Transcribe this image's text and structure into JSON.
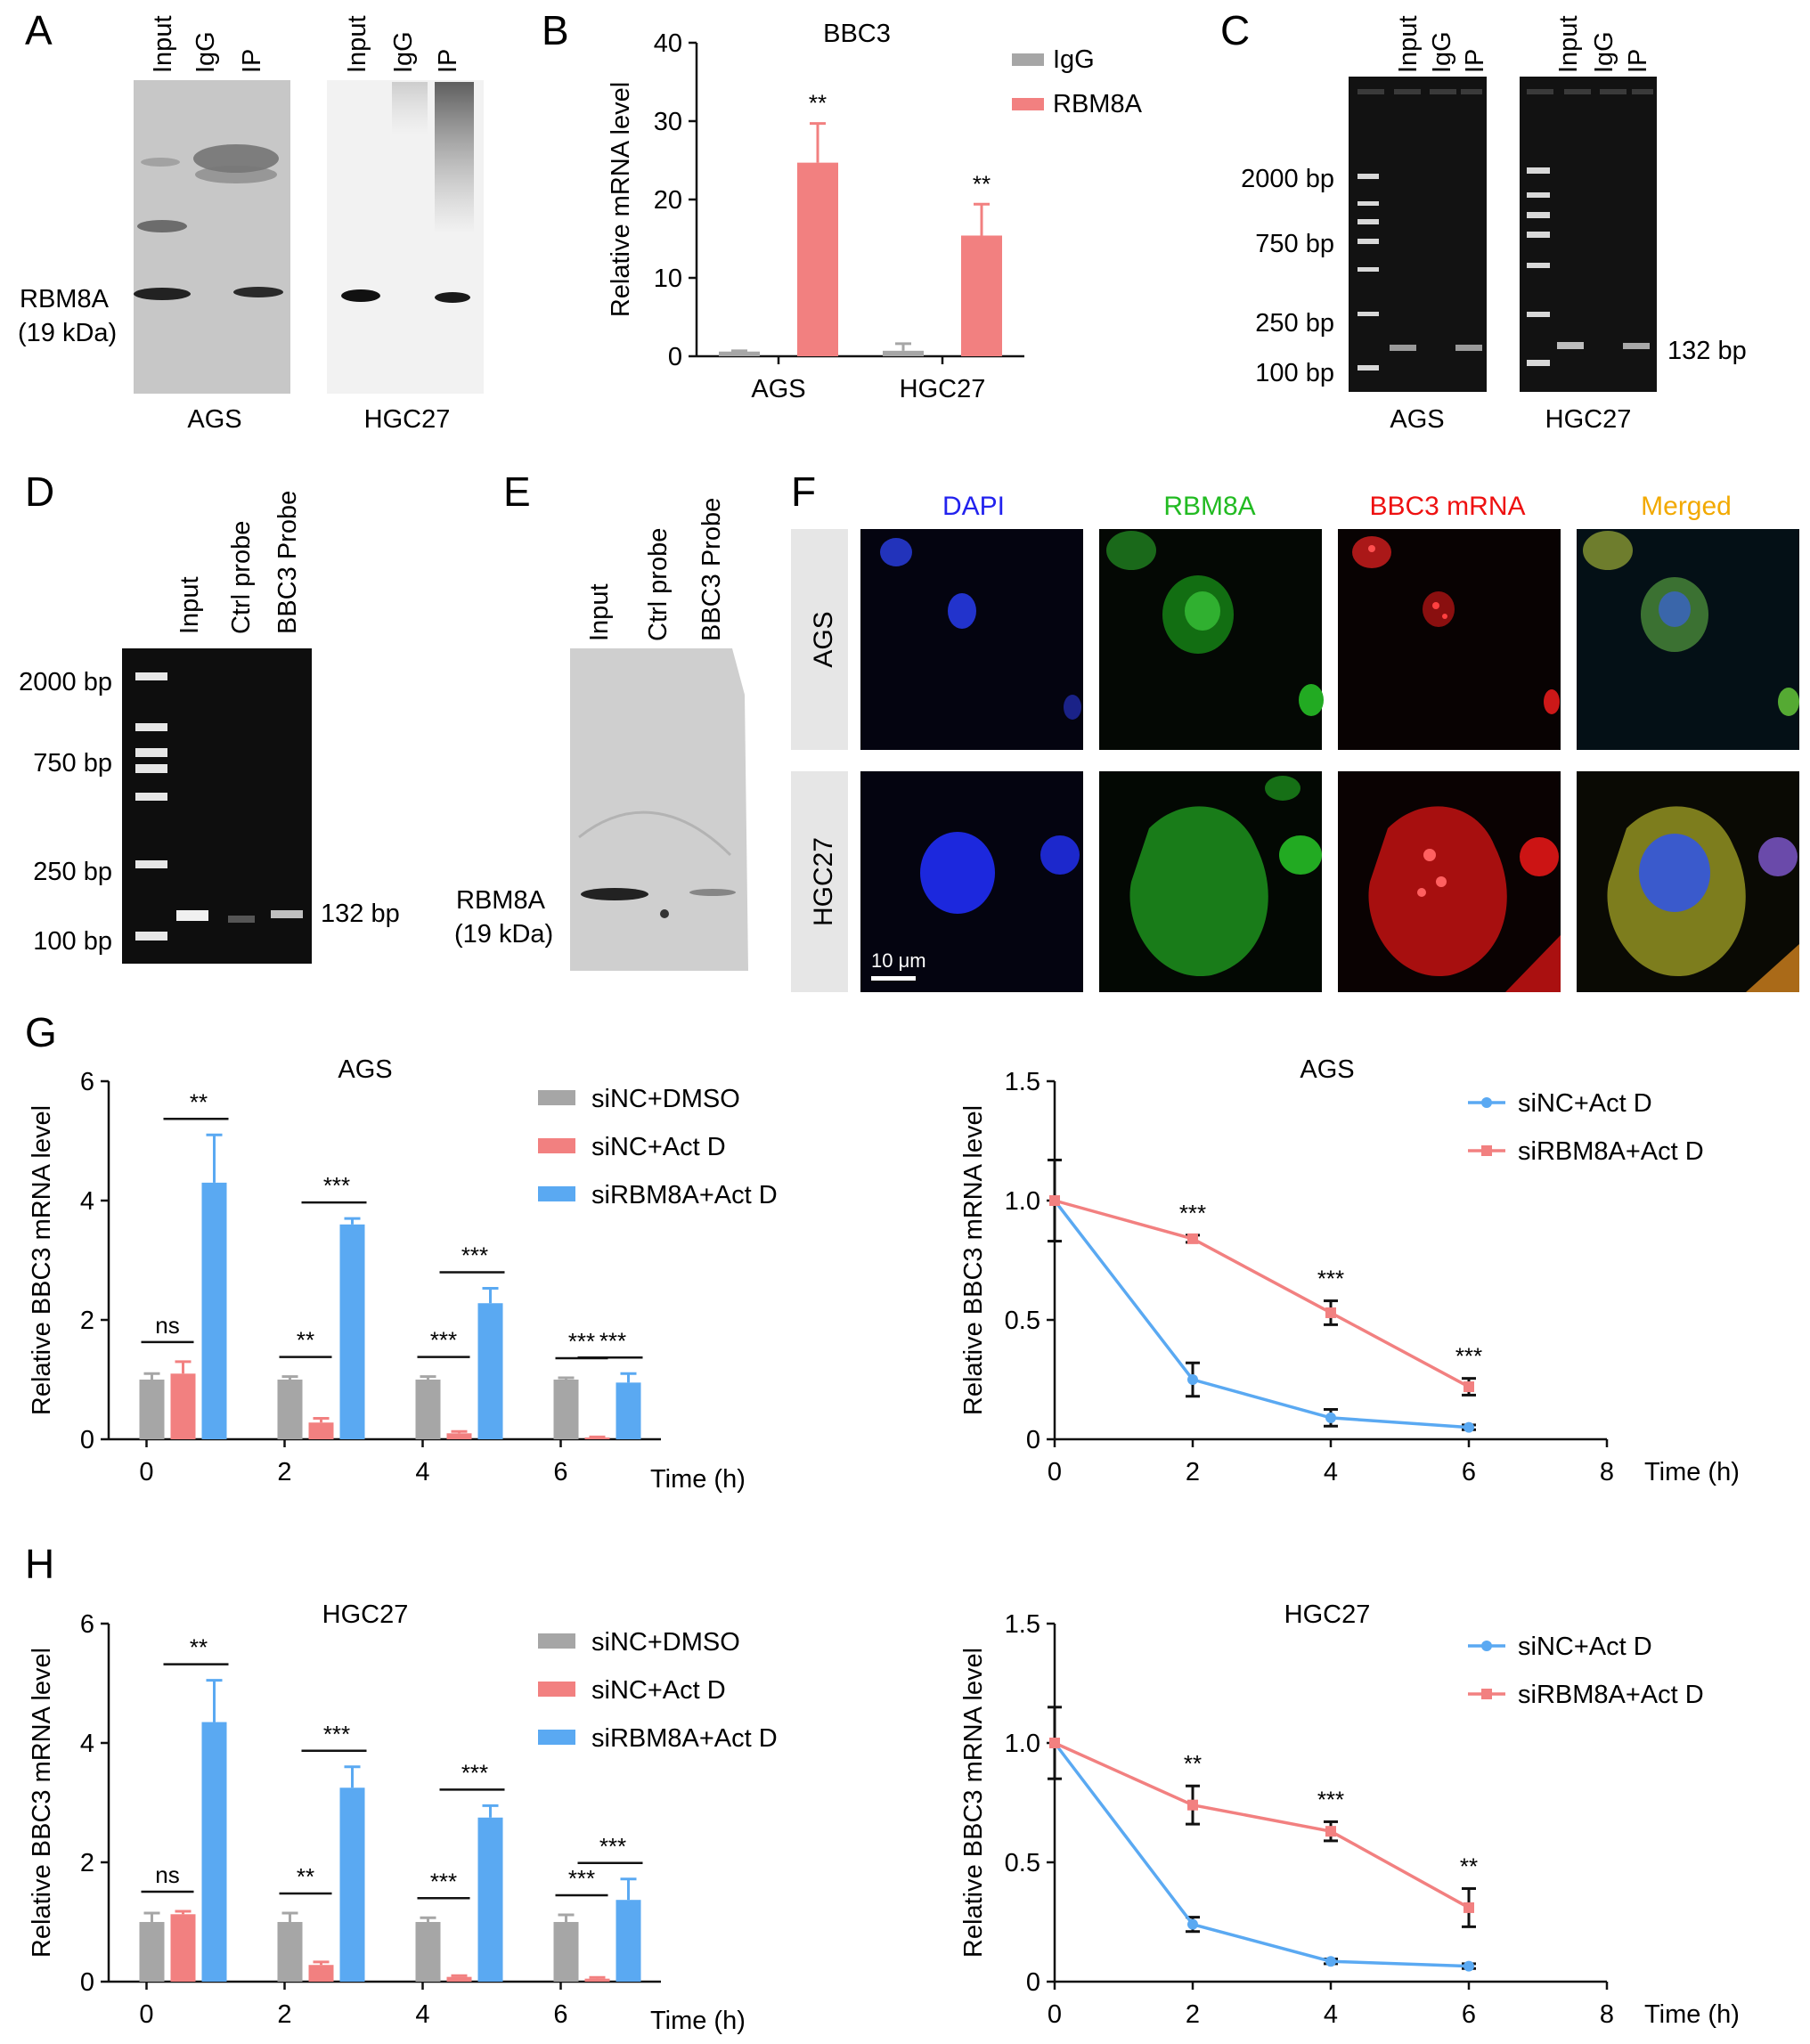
{
  "panels": {
    "A": "A",
    "B": "B",
    "C": "C",
    "D": "D",
    "E": "E",
    "F": "F",
    "G": "G",
    "H": "H"
  },
  "colors": {
    "igg": "#a6a6a6",
    "rbm8a": "#f28080",
    "dmso": "#a6a6a6",
    "actd": "#f28080",
    "si": "#5aa9f2",
    "dapi": "#1a1aff",
    "green": "#22bb22",
    "red": "#ee1111",
    "merged": "#f2a900"
  },
  "panel_a": {
    "lanes": [
      "Input",
      "IgG",
      "IP"
    ],
    "band_label": "RBM8A",
    "band_kda": "(19 kDa)",
    "cells": [
      "AGS",
      "HGC27"
    ]
  },
  "panel_c": {
    "lanes": [
      "Input",
      "IgG",
      "IP"
    ],
    "markers": [
      "2000 bp",
      "750 bp",
      "250 bp",
      "100 bp"
    ],
    "product": "132 bp",
    "cells": [
      "AGS",
      "HGC27"
    ]
  },
  "panel_d": {
    "lanes": [
      "Input",
      "Ctrl probe",
      "BBC3 Probe"
    ],
    "markers": [
      "2000 bp",
      "750 bp",
      "250 bp",
      "100 bp"
    ],
    "product": "132 bp"
  },
  "panel_e": {
    "lanes": [
      "Input",
      "Ctrl probe",
      "BBC3 Probe"
    ],
    "band_label": "RBM8A",
    "band_kda": "(19 kDa)"
  },
  "panel_f": {
    "columns": [
      "DAPI",
      "RBM8A",
      "BBC3 mRNA",
      "Merged"
    ],
    "rows": [
      "AGS",
      "HGC27"
    ],
    "scale_bar": "10 μm"
  },
  "chart_data": [
    {
      "id": "B",
      "type": "bar",
      "title": "BBC3",
      "ylabel": "Relative mRNA level",
      "xlabel": "",
      "categories": [
        "AGS",
        "HGC27"
      ],
      "ylim": [
        0,
        40
      ],
      "yticks": [
        0,
        10,
        20,
        30,
        40
      ],
      "series": [
        {
          "name": "IgG",
          "values": [
            0.6,
            0.7
          ],
          "errors": [
            0.1,
            0.9
          ]
        },
        {
          "name": "RBM8A",
          "values": [
            24.7,
            15.4
          ],
          "errors": [
            5.0,
            4.0
          ]
        }
      ],
      "significance": [
        "**",
        "**"
      ],
      "legend": "top-right"
    },
    {
      "id": "G-bar",
      "type": "bar",
      "title": "AGS",
      "ylabel": "Relative BBC3 mRNA level",
      "xlabel": "Time (h)",
      "categories": [
        "0",
        "2",
        "4",
        "6"
      ],
      "ylim": [
        0,
        6
      ],
      "yticks": [
        0,
        2,
        4,
        6
      ],
      "series": [
        {
          "name": "siNC+DMSO",
          "values": [
            1.0,
            1.0,
            1.0,
            1.0
          ],
          "errors": [
            0.1,
            0.05,
            0.05,
            0.03
          ]
        },
        {
          "name": "siNC+Act D",
          "values": [
            1.1,
            0.28,
            0.1,
            0.03
          ],
          "errors": [
            0.2,
            0.07,
            0.03,
            0.01
          ]
        },
        {
          "name": "siRBM8A+Act D",
          "values": [
            4.3,
            3.6,
            2.28,
            0.95
          ],
          "errors": [
            0.8,
            0.1,
            0.25,
            0.15
          ]
        }
      ],
      "significance": [
        "ns",
        "**",
        "***",
        "***",
        "**",
        "***",
        "***",
        "***"
      ],
      "legend": "top-right"
    },
    {
      "id": "G-line",
      "type": "line",
      "title": "AGS",
      "ylabel": "Relative BBC3 mRNA level",
      "xlabel": "Time (h)",
      "x": [
        0,
        2,
        4,
        6
      ],
      "xlim": [
        0,
        8
      ],
      "xticks": [
        0,
        2,
        4,
        6,
        8
      ],
      "ylim": [
        0,
        1.5
      ],
      "yticks": [
        "0",
        "0.5",
        "1.0",
        "1.5"
      ],
      "series": [
        {
          "name": "siNC+Act D",
          "values": [
            1.0,
            0.25,
            0.09,
            0.05
          ],
          "errors": [
            0.17,
            0.07,
            0.035,
            0.01
          ]
        },
        {
          "name": "siRBM8A+Act D",
          "values": [
            1.0,
            0.84,
            0.53,
            0.22
          ],
          "errors": [
            0.0,
            0.015,
            0.05,
            0.035
          ]
        }
      ],
      "significance": [
        "***",
        "***",
        "***"
      ],
      "legend": "top-right"
    },
    {
      "id": "H-bar",
      "type": "bar",
      "title": "HGC27",
      "ylabel": "Relative BBC3 mRNA level",
      "xlabel": "Time (h)",
      "categories": [
        "0",
        "2",
        "4",
        "6"
      ],
      "ylim": [
        0,
        6
      ],
      "yticks": [
        0,
        2,
        4,
        6
      ],
      "series": [
        {
          "name": "siNC+DMSO",
          "values": [
            1.0,
            1.0,
            1.0,
            1.0
          ],
          "errors": [
            0.15,
            0.15,
            0.07,
            0.12
          ]
        },
        {
          "name": "siNC+Act D",
          "values": [
            1.13,
            0.28,
            0.08,
            0.05
          ],
          "errors": [
            0.05,
            0.05,
            0.02,
            0.02
          ]
        },
        {
          "name": "siRBM8A+Act D",
          "values": [
            4.35,
            3.25,
            2.75,
            1.37
          ],
          "errors": [
            0.7,
            0.35,
            0.2,
            0.35
          ]
        }
      ],
      "significance": [
        "ns",
        "**",
        "***",
        "***",
        "**",
        "***",
        "***",
        "***"
      ],
      "legend": "top-right"
    },
    {
      "id": "H-line",
      "type": "line",
      "title": "HGC27",
      "ylabel": "Relative BBC3 mRNA level",
      "xlabel": "Time (h)",
      "x": [
        0,
        2,
        4,
        6
      ],
      "xlim": [
        0,
        8
      ],
      "xticks": [
        0,
        2,
        4,
        6,
        8
      ],
      "ylim": [
        0,
        1.5
      ],
      "yticks": [
        "0",
        "0.5",
        "1.0",
        "1.5"
      ],
      "series": [
        {
          "name": "siNC+Act D",
          "values": [
            1.0,
            0.24,
            0.085,
            0.065
          ],
          "errors": [
            0.15,
            0.03,
            0.01,
            0.01
          ]
        },
        {
          "name": "siRBM8A+Act D",
          "values": [
            1.0,
            0.74,
            0.63,
            0.31
          ],
          "errors": [
            0.0,
            0.08,
            0.04,
            0.08
          ]
        }
      ],
      "significance": [
        "**",
        "***",
        "**"
      ],
      "legend": "top-right"
    }
  ]
}
